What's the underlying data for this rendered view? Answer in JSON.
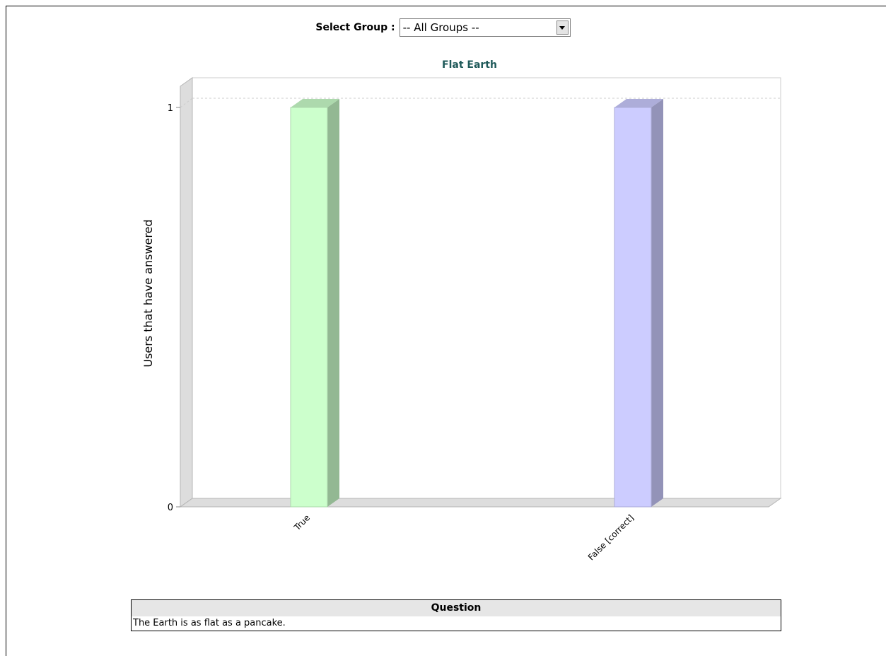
{
  "group_selector": {
    "label": "Select Group :",
    "selected": "-- All Groups --"
  },
  "chart_data": {
    "type": "bar",
    "title": "Flat Earth",
    "ylabel": "Users that have answered",
    "xlabel": "",
    "categories": [
      "True",
      "False [correct]"
    ],
    "values": [
      1,
      1
    ],
    "colors": [
      "#ccffcc",
      "#ccccff"
    ],
    "ylim": [
      0,
      1
    ],
    "yticks": [
      "0",
      "1"
    ],
    "grid": false,
    "three_d": true
  },
  "question_table": {
    "header": "Question",
    "text": "The Earth is as flat as a pancake."
  }
}
